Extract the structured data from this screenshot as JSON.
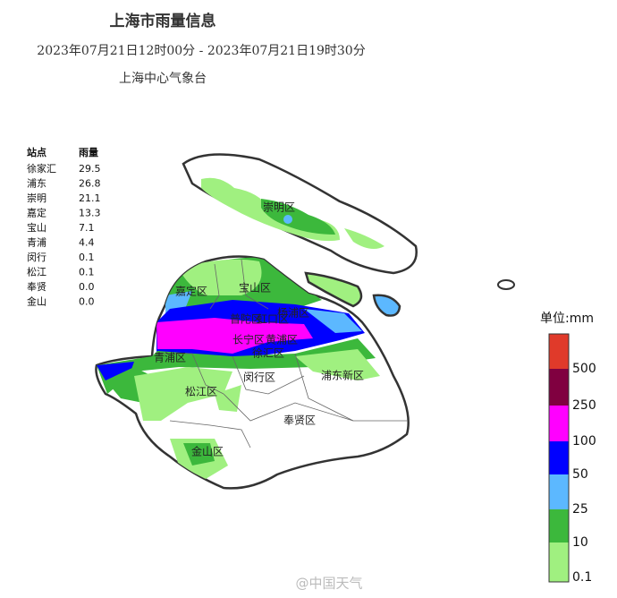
{
  "header": {
    "title": "上海市雨量信息",
    "time_range": "2023年07月21日12时00分 - 2023年07月21日19时30分",
    "issuer": "上海中心气象台"
  },
  "table": {
    "columns": [
      "站点",
      "雨量"
    ],
    "rows": [
      [
        "徐家汇",
        "29.5"
      ],
      [
        "浦东",
        "26.8"
      ],
      [
        "崇明",
        "21.1"
      ],
      [
        "嘉定",
        "13.3"
      ],
      [
        "宝山",
        "7.1"
      ],
      [
        "青浦",
        "4.4"
      ],
      [
        "闵行",
        "0.1"
      ],
      [
        "松江",
        "0.1"
      ],
      [
        "奉贤",
        "0.0"
      ],
      [
        "金山",
        "0.0"
      ]
    ]
  },
  "districts": [
    "崇明区",
    "嘉定区",
    "宝山区",
    "普陀区",
    "虹口区",
    "杨浦区",
    "长宁区",
    "黄浦区",
    "青浦区",
    "徐汇区",
    "闵行区",
    "浦东新区",
    "松江区",
    "奉贤区",
    "金山区"
  ],
  "legend": {
    "unit": "单位:mm",
    "labels": [
      "500",
      "250",
      "100",
      "50",
      "25",
      "10",
      "0.1"
    ]
  },
  "watermark": "@中国天气"
}
